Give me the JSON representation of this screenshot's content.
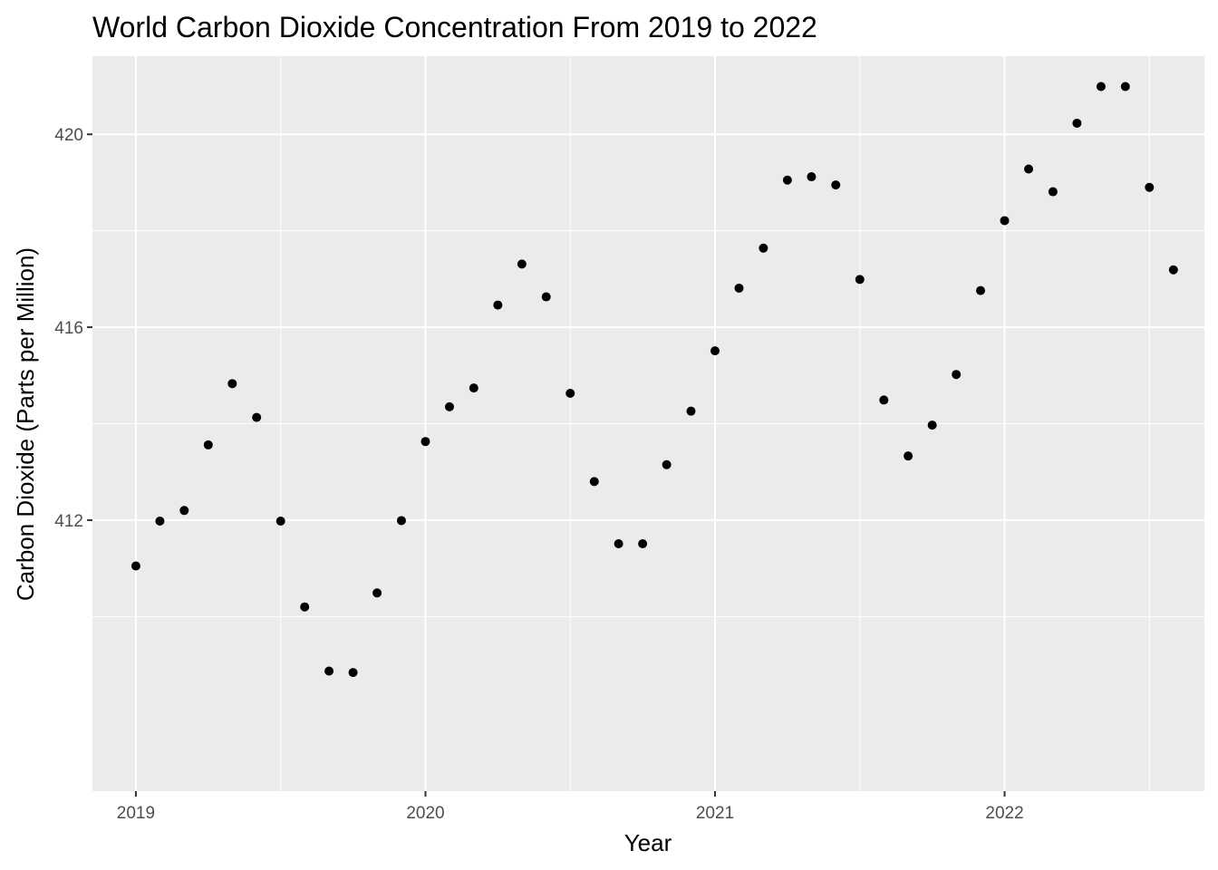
{
  "chart_data": {
    "type": "scatter",
    "title": "World Carbon Dioxide Concentration From 2019 to 2022",
    "xlabel": "Year",
    "ylabel": "Carbon Dioxide (Parts per Million)",
    "xlim": [
      2018.85,
      2022.69
    ],
    "ylim": [
      406.38,
      421.62
    ],
    "x_ticks": [
      2019,
      2020,
      2021,
      2022
    ],
    "x_tick_labels": [
      "2019",
      "2020",
      "2021",
      "2022"
    ],
    "y_ticks": [
      412,
      416,
      420
    ],
    "y_tick_labels": [
      "412",
      "416",
      "420"
    ],
    "grid": true,
    "colors": {
      "panel": "#ebebeb",
      "grid": "#ffffff",
      "point": "#000000",
      "tick_text": "#4d4d4d"
    },
    "x": [
      2019.0,
      2019.083,
      2019.167,
      2019.25,
      2019.333,
      2019.417,
      2019.5,
      2019.583,
      2019.667,
      2019.75,
      2019.833,
      2019.917,
      2020.0,
      2020.083,
      2020.167,
      2020.25,
      2020.333,
      2020.417,
      2020.5,
      2020.583,
      2020.667,
      2020.75,
      2020.833,
      2020.917,
      2021.0,
      2021.083,
      2021.167,
      2021.25,
      2021.333,
      2021.417,
      2021.5,
      2021.583,
      2021.667,
      2021.75,
      2021.833,
      2021.917,
      2022.0,
      2022.083,
      2022.167,
      2022.25,
      2022.333,
      2022.417,
      2022.5,
      2022.583
    ],
    "y": [
      411.05,
      411.98,
      412.2,
      413.56,
      414.83,
      414.13,
      411.98,
      410.2,
      408.87,
      408.84,
      410.49,
      411.99,
      413.63,
      414.35,
      414.74,
      416.46,
      417.31,
      416.63,
      414.63,
      412.8,
      411.51,
      411.51,
      413.15,
      414.26,
      415.51,
      416.81,
      417.64,
      419.05,
      419.12,
      418.95,
      416.99,
      414.49,
      413.33,
      413.97,
      415.02,
      416.76,
      418.21,
      419.28,
      418.81,
      420.23,
      420.99,
      420.99,
      418.9,
      417.19
    ]
  }
}
